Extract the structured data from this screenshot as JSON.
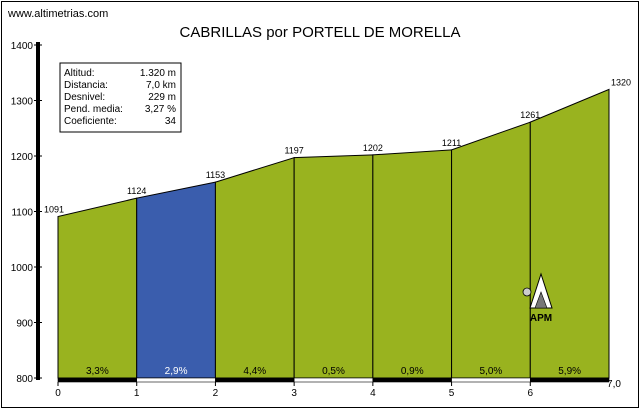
{
  "site": "www.altimetrias.com",
  "stats": {
    "rows": [
      {
        "label": "Altitud:",
        "value": "1.320 m"
      },
      {
        "label": "Distancia:",
        "value": "7,0 km"
      },
      {
        "label": "Desnivel:",
        "value": "229 m"
      },
      {
        "label": "Pend. media:",
        "value": "3,27 %"
      },
      {
        "label": "Coeficiente:",
        "value": "34"
      }
    ]
  },
  "marker": {
    "label": "APM"
  },
  "colors": {
    "profile": "#99b31f",
    "highlight": "#3a5dad",
    "axis": "#000000",
    "stripe_dark": "#000000",
    "stripe_light": "#ffffff"
  },
  "chart_data": {
    "type": "area",
    "title": "CABRILLAS por PORTELL DE MORELLA",
    "xlabel": "",
    "ylabel": "",
    "x": [
      0,
      1,
      2,
      3,
      4,
      5,
      6,
      7
    ],
    "y": [
      1091,
      1124,
      1153,
      1197,
      1202,
      1211,
      1261,
      1320
    ],
    "elevation_labels": [
      "1091",
      "1124",
      "1153",
      "1197",
      "1202",
      "1211",
      "1261",
      "1320"
    ],
    "segment_gradients": [
      "3,3%",
      "2,9%",
      "4,4%",
      "0,5%",
      "0,9%",
      "5,0%",
      "5,9%"
    ],
    "highlight_segment": 1,
    "x_ticks": [
      "0",
      "1",
      "2",
      "3",
      "4",
      "5",
      "6"
    ],
    "x_end_label": "7,0",
    "y_ticks": [
      800,
      900,
      1000,
      1100,
      1200,
      1300,
      1400
    ],
    "xlim": [
      0,
      7
    ],
    "ylim": [
      800,
      1400
    ],
    "grid": false
  }
}
